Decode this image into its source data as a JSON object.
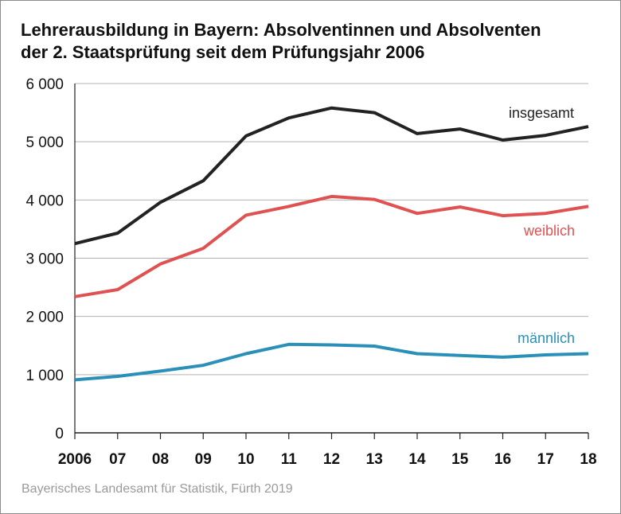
{
  "title_lines": [
    "Lehrerausbildung in Bayern: Absolventinnen und Absolventen",
    "der 2. Staatsprüfung seit dem Prüfungsjahr 2006"
  ],
  "source": "Bayerisches Landesamt für Statistik, Fürth 2019",
  "chart_data": {
    "type": "line",
    "title": "Lehrerausbildung in Bayern: Absolventinnen und Absolventen der 2. Staatsprüfung seit dem Prüfungsjahr 2006",
    "xlabel": "",
    "ylabel": "",
    "x": [
      "2006",
      "07",
      "08",
      "09",
      "10",
      "11",
      "12",
      "13",
      "14",
      "15",
      "16",
      "17",
      "18"
    ],
    "ylim": [
      0,
      6000
    ],
    "yticks": [
      0,
      1000,
      2000,
      3000,
      4000,
      5000,
      6000
    ],
    "ytick_labels": [
      "0",
      "1 000",
      "2 000",
      "3 000",
      "4 000",
      "5 000",
      "6 000"
    ],
    "grid": true,
    "series": [
      {
        "name": "insgesamt",
        "color": "#222222",
        "values": [
          3250,
          3430,
          3960,
          4330,
          5100,
          5410,
          5580,
          5500,
          5140,
          5220,
          5030,
          5110,
          5260
        ]
      },
      {
        "name": "weiblich",
        "color": "#e05252",
        "values": [
          2340,
          2460,
          2900,
          3170,
          3740,
          3890,
          4060,
          4010,
          3770,
          3880,
          3730,
          3770,
          3890
        ]
      },
      {
        "name": "männlich",
        "color": "#2a90b8",
        "values": [
          910,
          970,
          1060,
          1160,
          1360,
          1520,
          1510,
          1490,
          1360,
          1330,
          1300,
          1340,
          1360
        ]
      }
    ]
  }
}
